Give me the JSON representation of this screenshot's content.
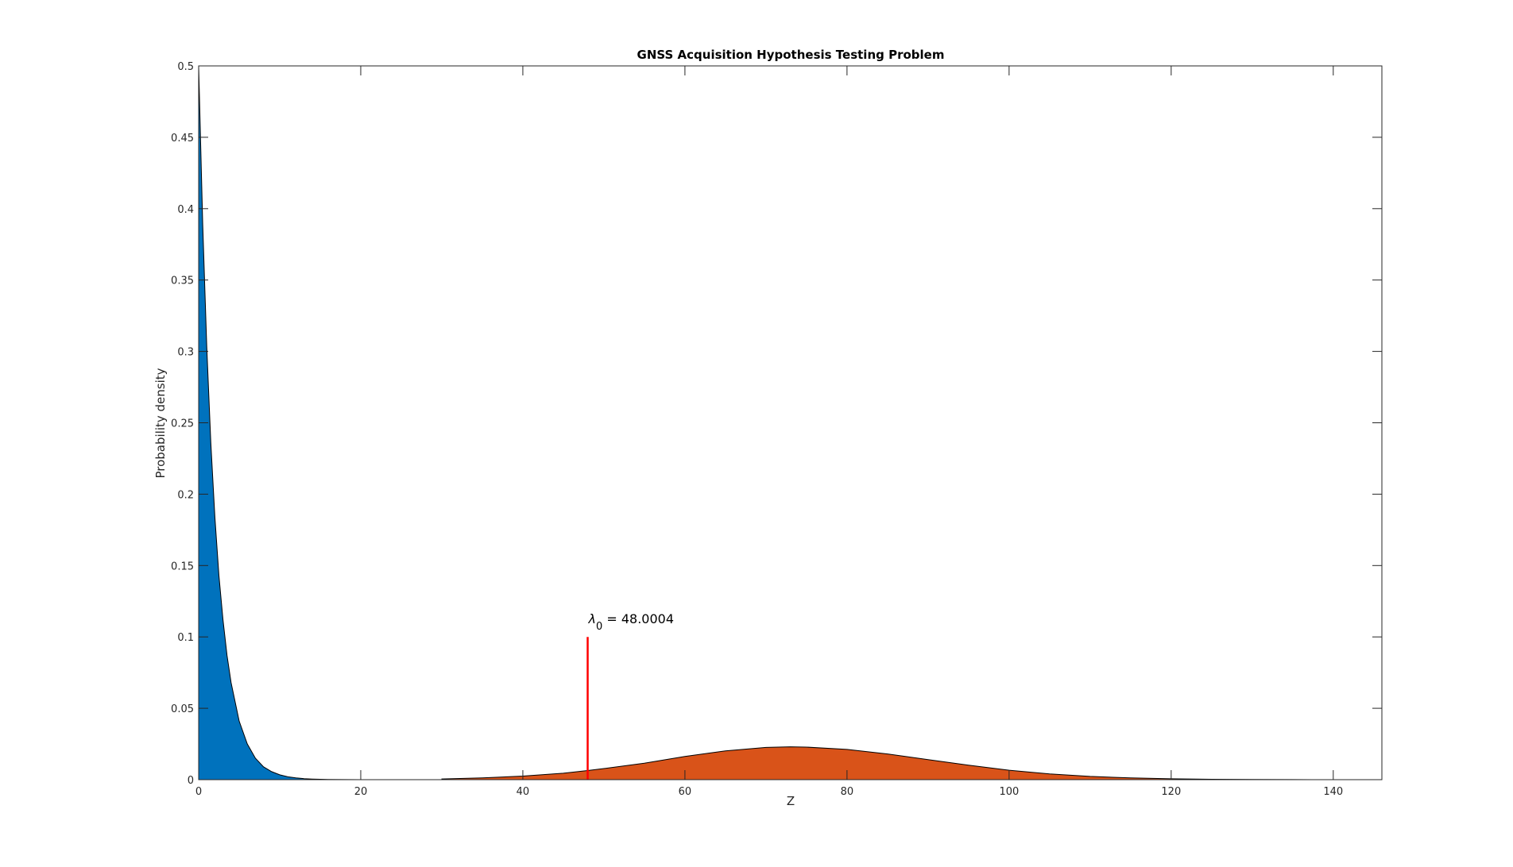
{
  "chart_data": {
    "type": "area",
    "title": "GNSS Acquisition Hypothesis Testing Problem",
    "xlabel": "Z",
    "ylabel": "Probability density",
    "xlim": [
      0,
      146
    ],
    "ylim": [
      0,
      0.5
    ],
    "xticks": [
      0,
      20,
      40,
      60,
      80,
      100,
      120,
      140
    ],
    "yticks": [
      0,
      0.05,
      0.1,
      0.15,
      0.2,
      0.25,
      0.3,
      0.35,
      0.4,
      0.45,
      0.5
    ],
    "xtick_labels": [
      "0",
      "20",
      "40",
      "60",
      "80",
      "100",
      "120",
      "140"
    ],
    "ytick_labels": [
      "0",
      "0.05",
      "0.1",
      "0.15",
      "0.2",
      "0.25",
      "0.3",
      "0.35",
      "0.4",
      "0.45",
      "0.5"
    ],
    "grid": false,
    "series": [
      {
        "color": "#0072BD",
        "x": [
          0,
          0.5,
          1,
          1.5,
          2,
          2.5,
          3,
          3.5,
          4,
          5,
          6,
          7,
          8,
          9,
          10,
          11,
          12,
          13,
          14,
          15,
          16,
          18,
          20
        ],
        "y": [
          0.5,
          0.389,
          0.303,
          0.236,
          0.184,
          0.143,
          0.112,
          0.087,
          0.068,
          0.041,
          0.025,
          0.015,
          0.009,
          0.0056,
          0.0034,
          0.002,
          0.0012,
          0.00075,
          0.00045,
          0.00028,
          0.00017,
          6e-05,
          2e-05
        ]
      },
      {
        "color": "#D95319",
        "x": [
          30,
          35,
          40,
          45,
          48,
          50,
          55,
          60,
          65,
          70,
          73,
          75,
          80,
          85,
          90,
          95,
          100,
          105,
          110,
          115,
          120,
          125,
          130,
          135,
          140
        ],
        "y": [
          0.0005,
          0.0012,
          0.0025,
          0.0045,
          0.0064,
          0.0078,
          0.0115,
          0.0163,
          0.0202,
          0.0226,
          0.023,
          0.0228,
          0.0212,
          0.018,
          0.014,
          0.0101,
          0.0066,
          0.004,
          0.0023,
          0.0012,
          0.0006,
          0.0003,
          0.00012,
          5e-05,
          2e-05
        ]
      }
    ],
    "threshold": {
      "x": 48.0004,
      "y_top": 0.1,
      "color": "#FF0000",
      "label_symbol": "λ",
      "label_subscript": "0",
      "label_value": " = 48.0004"
    }
  }
}
